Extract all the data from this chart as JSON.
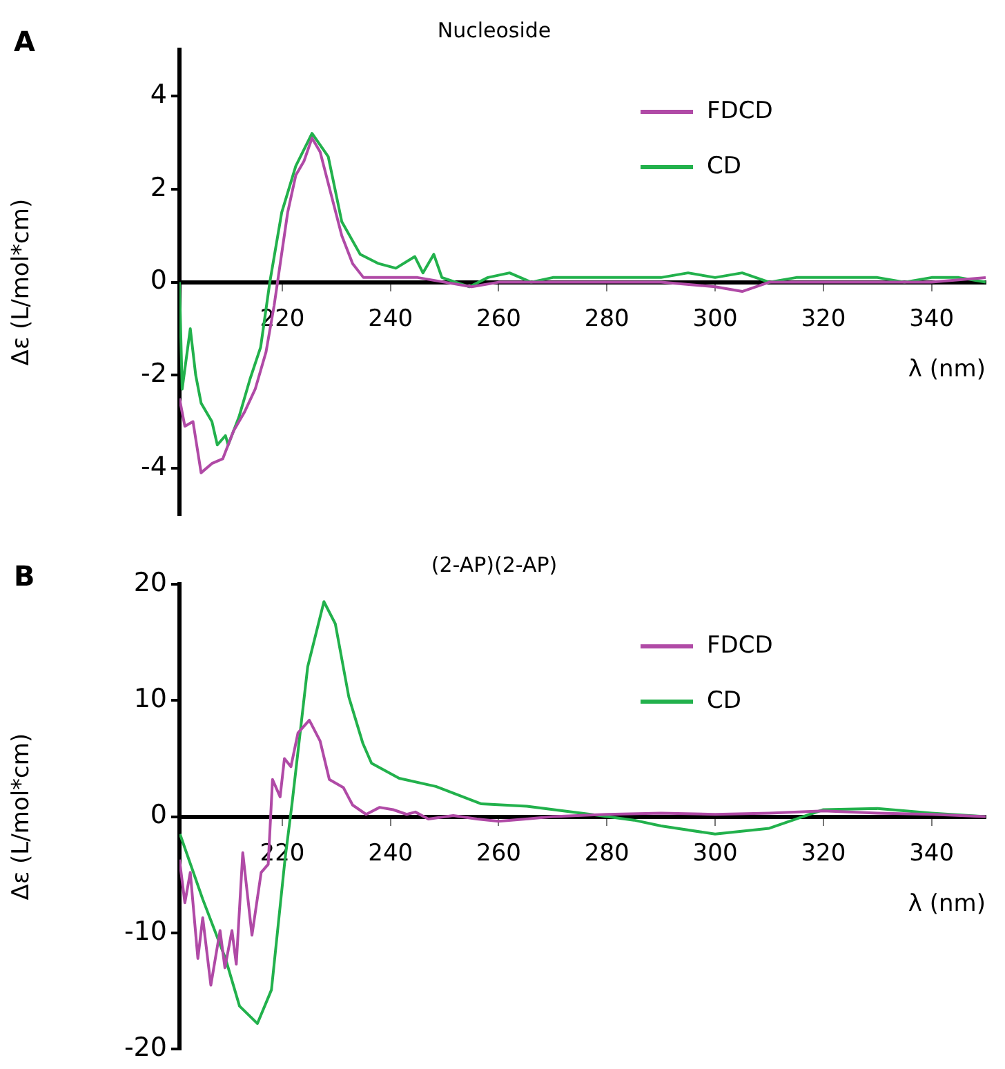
{
  "chart_data": [
    {
      "type": "line",
      "title": "Nucleoside",
      "xlabel": "λ (nm)",
      "ylabel": "Δε (L/mol*cm)",
      "annotations": [
        "A"
      ],
      "xlim": [
        201,
        350
      ],
      "xticks": [
        220,
        240,
        260,
        280,
        300,
        320,
        340
      ],
      "ylim": [
        -5,
        5
      ],
      "yticks": [
        -4,
        -2,
        0,
        2,
        4
      ],
      "grid": false,
      "legend": "top right",
      "marker": "none",
      "line_style": "solid",
      "series": [
        {
          "name": "FDCD",
          "color": "#b04aa6",
          "x": [
            201,
            202,
            203.5,
            205,
            207,
            209,
            211,
            213,
            215,
            217,
            218.5,
            219.5,
            221,
            222.5,
            224,
            225.5,
            227,
            229,
            231,
            233,
            235,
            238,
            245,
            250,
            255,
            260,
            270,
            280,
            290,
            300,
            305,
            310,
            320,
            330,
            340,
            350
          ],
          "values": [
            -2.5,
            -3.1,
            -3.0,
            -4.1,
            -3.9,
            -3.8,
            -3.2,
            -2.8,
            -2.3,
            -1.5,
            -0.5,
            0.3,
            1.5,
            2.3,
            2.6,
            3.1,
            2.8,
            1.9,
            1.0,
            0.4,
            0.1,
            0.1,
            0.1,
            0,
            -0.1,
            0,
            0,
            0,
            0,
            -0.1,
            -0.2,
            0,
            0,
            0,
            0,
            0.1
          ]
        },
        {
          "name": "CD",
          "color": "#22b14c",
          "x": [
            201,
            201.5,
            203,
            204,
            205,
            207,
            208,
            209.5,
            210,
            212,
            214,
            216,
            217.7,
            219.9,
            222.5,
            225.5,
            228.5,
            231,
            234.4,
            237.8,
            241,
            244.5,
            246,
            248,
            249.5,
            254.6,
            258,
            262,
            266,
            270,
            275,
            280,
            285,
            290,
            295,
            300,
            305,
            310,
            315,
            320,
            325,
            330,
            335,
            340,
            345,
            350
          ],
          "values": [
            0,
            -2.3,
            -1.0,
            -2.0,
            -2.6,
            -3.0,
            -3.5,
            -3.3,
            -3.5,
            -2.9,
            -2.1,
            -1.4,
            0,
            1.5,
            2.5,
            3.2,
            2.7,
            1.3,
            0.6,
            0.4,
            0.3,
            0.55,
            0.2,
            0.6,
            0.1,
            -0.1,
            0.1,
            0.2,
            0,
            0.1,
            0.1,
            0.1,
            0.1,
            0.1,
            0.2,
            0.1,
            0.2,
            0,
            0.1,
            0.1,
            0.1,
            0.1,
            0,
            0.1,
            0.1,
            0
          ]
        }
      ]
    },
    {
      "type": "line",
      "title": "(2-AP)(2-AP)",
      "xlabel": "λ (nm)",
      "ylabel": "Δε (L/mol*cm)",
      "annotations": [
        "B"
      ],
      "xlim": [
        201,
        350
      ],
      "xticks": [
        220,
        240,
        260,
        280,
        300,
        320,
        340
      ],
      "ylim": [
        -20,
        20
      ],
      "yticks": [
        -20,
        -10,
        0,
        10,
        20
      ],
      "grid": false,
      "legend": "top right",
      "marker": "none",
      "line_style": "solid",
      "series": [
        {
          "name": "FDCD",
          "color": "#b04aa6",
          "x": [
            201,
            202,
            203,
            204.4,
            205.3,
            206.8,
            208.5,
            209.4,
            210.7,
            211.5,
            212.7,
            214.4,
            216.1,
            217.4,
            218.2,
            219.6,
            220.4,
            221.6,
            222.9,
            225,
            227,
            228.7,
            231.3,
            233,
            235.5,
            238,
            240.5,
            243,
            244.6,
            247,
            251.6,
            256,
            260,
            265,
            270,
            280,
            290,
            300,
            310,
            320,
            330,
            340,
            350
          ],
          "values": [
            -3.7,
            -7.4,
            -4.8,
            -12.2,
            -8.7,
            -14.5,
            -9.8,
            -13,
            -9.8,
            -12.7,
            -3.1,
            -10.2,
            -4.8,
            -4.1,
            3.2,
            1.7,
            5.0,
            4.3,
            7.2,
            8.3,
            6.5,
            3.2,
            2.5,
            1.0,
            0.2,
            0.8,
            0.6,
            0.2,
            0.4,
            -0.2,
            0.1,
            -0.2,
            -0.4,
            -0.2,
            0,
            0.2,
            0.3,
            0.2,
            0.3,
            0.5,
            0.3,
            0.2,
            0
          ]
        },
        {
          "name": "CD",
          "color": "#22b14c",
          "x": [
            201.1,
            205.3,
            209.5,
            212.1,
            215.4,
            218,
            220.5,
            221.8,
            224.7,
            227.7,
            229.8,
            232.3,
            234.9,
            236.5,
            241.6,
            248.4,
            256.8,
            265.2,
            277,
            285,
            290,
            300,
            310,
            315,
            320,
            330,
            340,
            350
          ],
          "values": [
            -1.5,
            -7.1,
            -12.2,
            -16.3,
            -17.8,
            -14.9,
            -3.7,
            1.1,
            12.9,
            18.5,
            16.6,
            10.3,
            6.3,
            4.6,
            3.3,
            2.6,
            1.1,
            0.9,
            0.2,
            -0.3,
            -0.8,
            -1.5,
            -1.0,
            -0.2,
            0.6,
            0.7,
            0.3,
            0
          ]
        }
      ]
    }
  ]
}
